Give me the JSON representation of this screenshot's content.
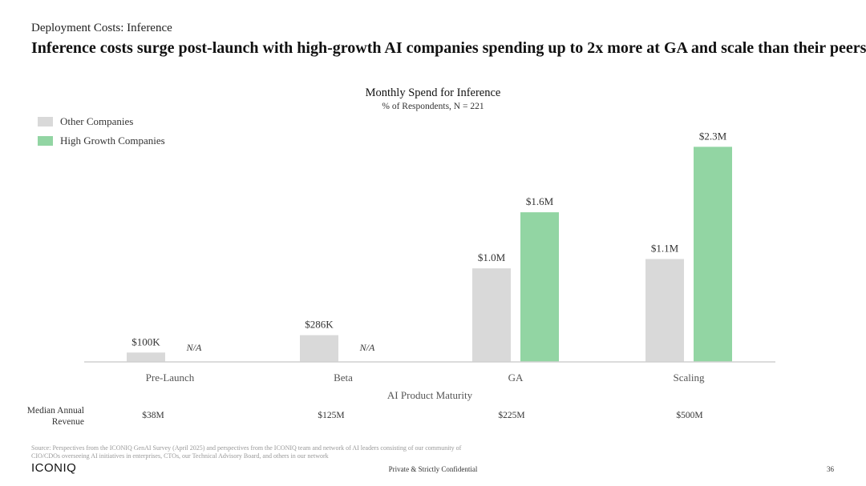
{
  "header": {
    "eyebrow": "Deployment Costs: Inference",
    "headline": "Inference costs surge post-launch with high-growth AI companies spending up to 2x more at GA and scale than their peers"
  },
  "chart_data": {
    "type": "bar",
    "title": "Monthly Spend for Inference",
    "subtitle": "% of Respondents, N = 221",
    "xlabel": "AI Product Maturity",
    "ylabel": "",
    "categories": [
      "Pre-Launch",
      "Beta",
      "GA",
      "Scaling"
    ],
    "ylim": [
      0,
      2.5
    ],
    "grid": false,
    "legend_position": "top-left",
    "series": [
      {
        "name": "Other Companies",
        "color": "#d9d9d9",
        "values": [
          0.1,
          0.286,
          1.0,
          1.1
        ],
        "labels": [
          "$100K",
          "$286K",
          "$1.0M",
          "$1.1M"
        ]
      },
      {
        "name": "High Growth Companies",
        "color": "#92d5a3",
        "values": [
          null,
          null,
          1.6,
          2.3
        ],
        "labels": [
          "N/A",
          "N/A",
          "$1.6M",
          "$2.3M"
        ]
      }
    ]
  },
  "revenue_row": {
    "label_line1": "Median Annual",
    "label_line2": "Revenue",
    "values": [
      "$38M",
      "$125M",
      "$225M",
      "$500M"
    ]
  },
  "footer": {
    "source_line1": "Source: Perspectives from the ICONIQ GenAI Survey (April 2025) and perspectives from the ICONIQ team and network of AI leaders consisting of our community of",
    "source_line2": "CIO/CDOs overseeing AI initiatives in enterprises, CTOs, our Technical Advisory Board, and others in our network",
    "logo": "ICONIQ",
    "confidential": "Private & Strictly Confidential",
    "page": "36"
  }
}
